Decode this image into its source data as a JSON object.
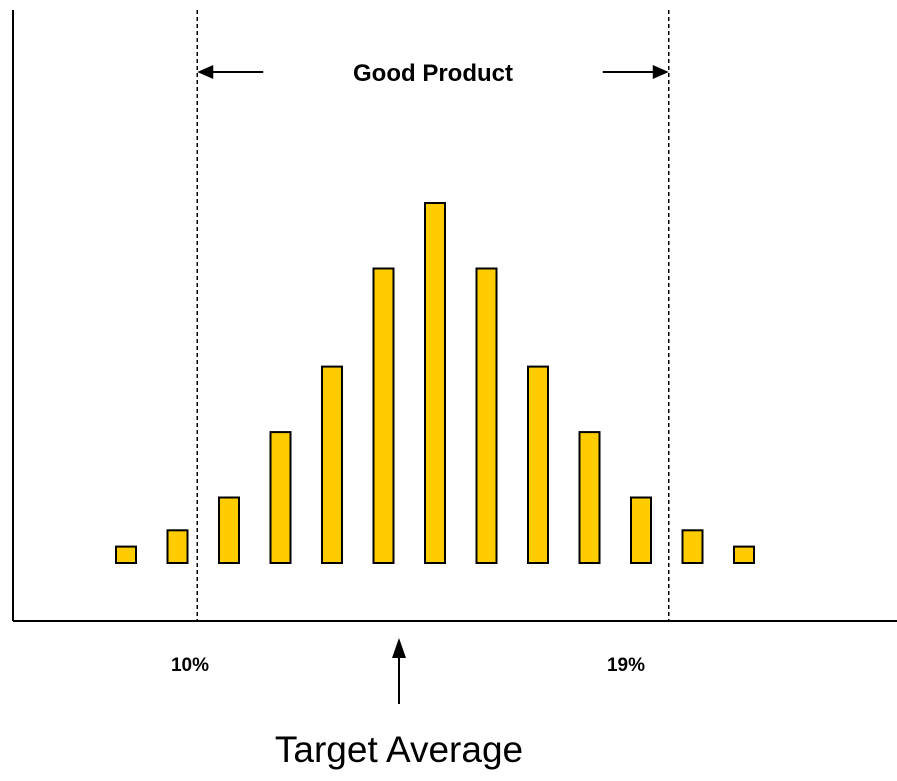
{
  "chart_data": {
    "type": "bar",
    "values": [
      1,
      2,
      4,
      8,
      12,
      18,
      22,
      18,
      12,
      8,
      4,
      2,
      1
    ],
    "ylim": [
      0,
      26
    ],
    "grid": false,
    "bar_color": "#FFCC00",
    "limits": [
      {
        "name": "lower-limit",
        "label": "10%",
        "position_index": 1.5
      },
      {
        "name": "upper-limit",
        "label": "19%",
        "position_index": 10.5
      }
    ],
    "annotations": {
      "good_product": "Good Product",
      "target_average": "Target Average",
      "target_index": 5.5
    }
  }
}
